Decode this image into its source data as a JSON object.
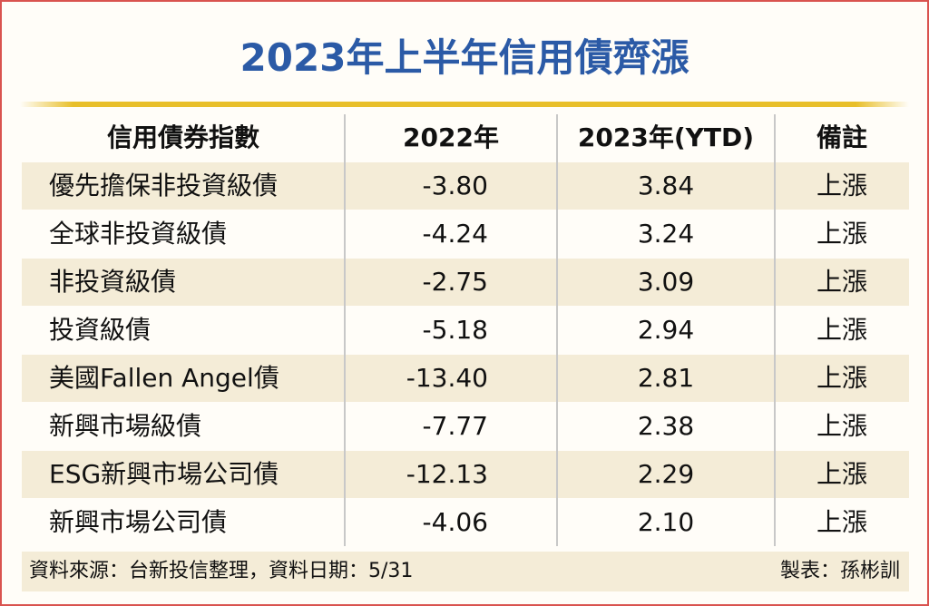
{
  "title": "2023年上半年信用債齊漲",
  "table": {
    "header": [
      "信用債券指數",
      "2022年",
      "2023年(YTD)",
      "備註"
    ],
    "rows": [
      [
        "優先擔保非投資級債",
        "-3.80",
        "3.84",
        "上漲"
      ],
      [
        "全球非投資級債",
        "-4.24",
        "3.24",
        "上漲"
      ],
      [
        "非投資級債",
        "-2.75",
        "3.09",
        "上漲"
      ],
      [
        "投資級債",
        "-5.18",
        "2.94",
        "上漲"
      ],
      [
        "美國Fallen Angel債",
        "-13.40",
        "2.81",
        "上漲"
      ],
      [
        "新興市場級債",
        "-7.77",
        "2.38",
        "上漲"
      ],
      [
        "ESG新興市場公司債",
        "-12.13",
        "2.29",
        "上漲"
      ],
      [
        "新興市場公司債",
        "-4.06",
        "2.10",
        "上漲"
      ]
    ]
  },
  "footer": {
    "source": "資料來源：台新投信整理，資料日期：5/31",
    "author": "製表：孫彬訓"
  }
}
